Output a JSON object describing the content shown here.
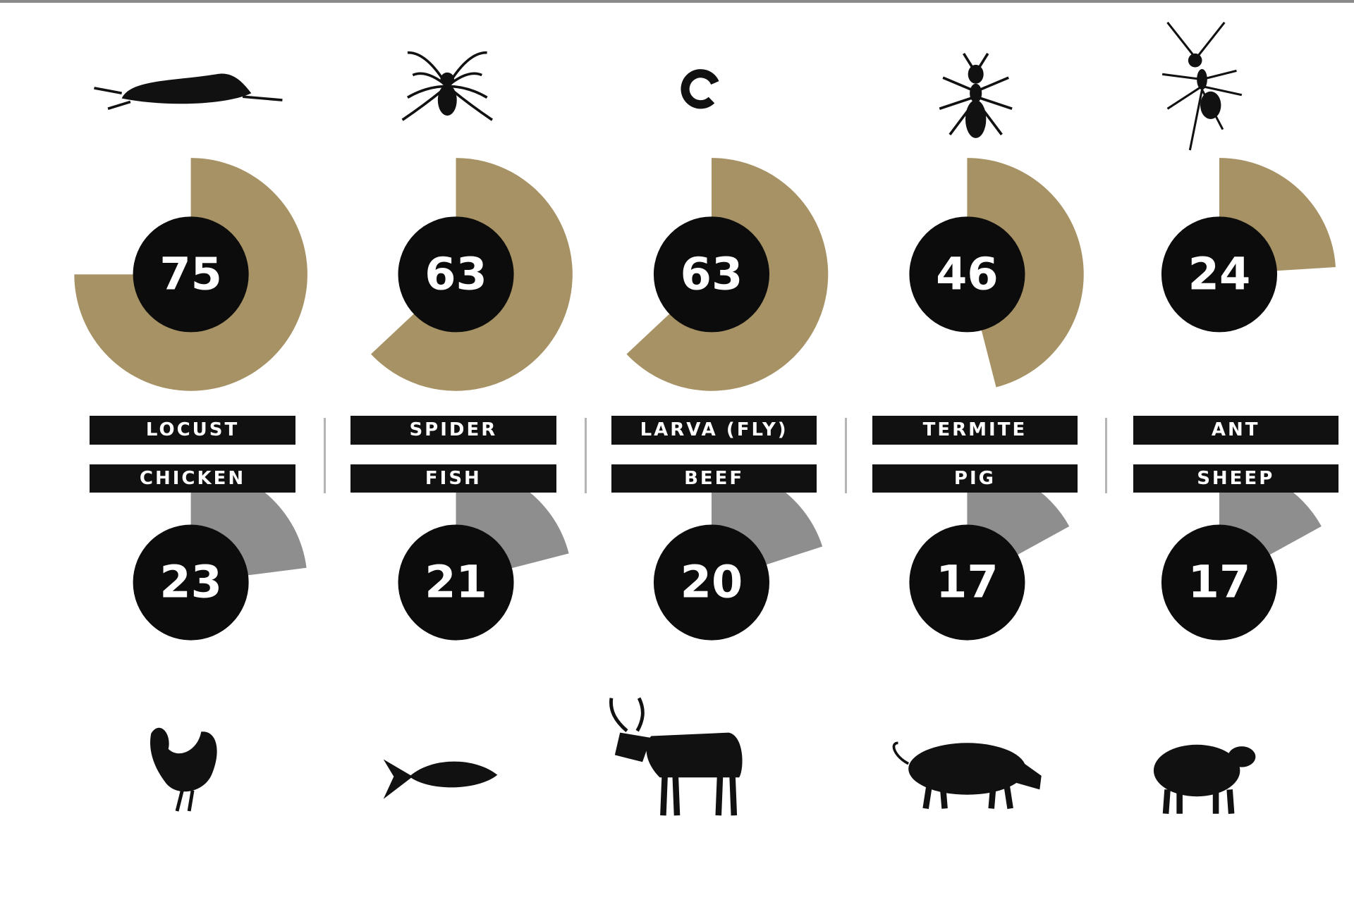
{
  "colors": {
    "insect_arc": "#a69264",
    "meat_arc": "#8e8e8e",
    "circle": "#0c0c0c",
    "label_bg": "#111111",
    "label_text": "#ffffff",
    "separator": "#b4b4b4"
  },
  "chart_data": {
    "type": "pie",
    "scale_max": 100,
    "pairs": [
      {
        "insect": "LOCUST",
        "insect_value": 75,
        "insect_icon": "locust-icon",
        "meat": "CHICKEN",
        "meat_value": 23,
        "meat_icon": "chicken-icon"
      },
      {
        "insect": "SPIDER",
        "insect_value": 63,
        "insect_icon": "spider-icon",
        "meat": "FISH",
        "meat_value": 21,
        "meat_icon": "fish-icon"
      },
      {
        "insect": "LARVA (FLY)",
        "insect_value": 63,
        "insect_icon": "larva-icon",
        "meat": "BEEF",
        "meat_value": 20,
        "meat_icon": "cow-icon"
      },
      {
        "insect": "TERMITE",
        "insect_value": 46,
        "insect_icon": "termite-icon",
        "meat": "PIG",
        "meat_value": 17,
        "meat_icon": "pig-icon"
      },
      {
        "insect": "ANT",
        "insect_value": 24,
        "insect_icon": "ant-icon",
        "meat": "SHEEP",
        "meat_value": 17,
        "meat_icon": "sheep-icon"
      }
    ]
  }
}
